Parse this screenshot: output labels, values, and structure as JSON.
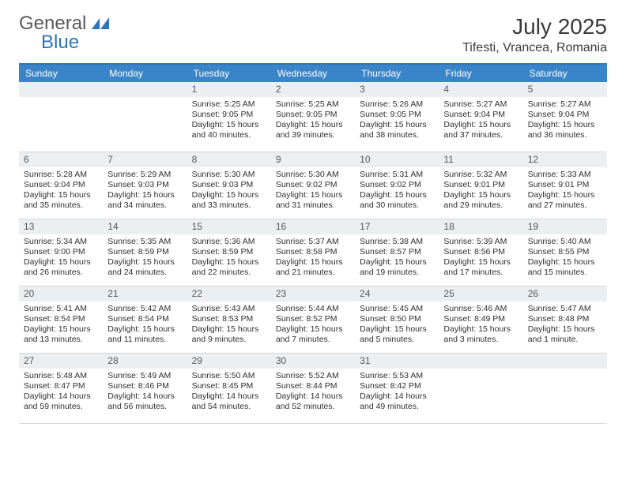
{
  "logo": {
    "word1": "General",
    "word2": "Blue"
  },
  "header": {
    "month_title": "July 2025",
    "location": "Tifesti, Vrancea, Romania"
  },
  "colors": {
    "header_bar": "#3a85c9",
    "header_bar_border": "#2d74b8",
    "daynum_bg": "#eceff1",
    "text": "#2f2f2f",
    "logo_gray": "#5a5a5a",
    "logo_blue": "#2d74b8"
  },
  "days_of_week": [
    "Sunday",
    "Monday",
    "Tuesday",
    "Wednesday",
    "Thursday",
    "Friday",
    "Saturday"
  ],
  "weeks": [
    [
      null,
      null,
      {
        "n": "1",
        "sunrise": "Sunrise: 5:25 AM",
        "sunset": "Sunset: 9:05 PM",
        "daylight": "Daylight: 15 hours and 40 minutes."
      },
      {
        "n": "2",
        "sunrise": "Sunrise: 5:25 AM",
        "sunset": "Sunset: 9:05 PM",
        "daylight": "Daylight: 15 hours and 39 minutes."
      },
      {
        "n": "3",
        "sunrise": "Sunrise: 5:26 AM",
        "sunset": "Sunset: 9:05 PM",
        "daylight": "Daylight: 15 hours and 38 minutes."
      },
      {
        "n": "4",
        "sunrise": "Sunrise: 5:27 AM",
        "sunset": "Sunset: 9:04 PM",
        "daylight": "Daylight: 15 hours and 37 minutes."
      },
      {
        "n": "5",
        "sunrise": "Sunrise: 5:27 AM",
        "sunset": "Sunset: 9:04 PM",
        "daylight": "Daylight: 15 hours and 36 minutes."
      }
    ],
    [
      {
        "n": "6",
        "sunrise": "Sunrise: 5:28 AM",
        "sunset": "Sunset: 9:04 PM",
        "daylight": "Daylight: 15 hours and 35 minutes."
      },
      {
        "n": "7",
        "sunrise": "Sunrise: 5:29 AM",
        "sunset": "Sunset: 9:03 PM",
        "daylight": "Daylight: 15 hours and 34 minutes."
      },
      {
        "n": "8",
        "sunrise": "Sunrise: 5:30 AM",
        "sunset": "Sunset: 9:03 PM",
        "daylight": "Daylight: 15 hours and 33 minutes."
      },
      {
        "n": "9",
        "sunrise": "Sunrise: 5:30 AM",
        "sunset": "Sunset: 9:02 PM",
        "daylight": "Daylight: 15 hours and 31 minutes."
      },
      {
        "n": "10",
        "sunrise": "Sunrise: 5:31 AM",
        "sunset": "Sunset: 9:02 PM",
        "daylight": "Daylight: 15 hours and 30 minutes."
      },
      {
        "n": "11",
        "sunrise": "Sunrise: 5:32 AM",
        "sunset": "Sunset: 9:01 PM",
        "daylight": "Daylight: 15 hours and 29 minutes."
      },
      {
        "n": "12",
        "sunrise": "Sunrise: 5:33 AM",
        "sunset": "Sunset: 9:01 PM",
        "daylight": "Daylight: 15 hours and 27 minutes."
      }
    ],
    [
      {
        "n": "13",
        "sunrise": "Sunrise: 5:34 AM",
        "sunset": "Sunset: 9:00 PM",
        "daylight": "Daylight: 15 hours and 26 minutes."
      },
      {
        "n": "14",
        "sunrise": "Sunrise: 5:35 AM",
        "sunset": "Sunset: 8:59 PM",
        "daylight": "Daylight: 15 hours and 24 minutes."
      },
      {
        "n": "15",
        "sunrise": "Sunrise: 5:36 AM",
        "sunset": "Sunset: 8:59 PM",
        "daylight": "Daylight: 15 hours and 22 minutes."
      },
      {
        "n": "16",
        "sunrise": "Sunrise: 5:37 AM",
        "sunset": "Sunset: 8:58 PM",
        "daylight": "Daylight: 15 hours and 21 minutes."
      },
      {
        "n": "17",
        "sunrise": "Sunrise: 5:38 AM",
        "sunset": "Sunset: 8:57 PM",
        "daylight": "Daylight: 15 hours and 19 minutes."
      },
      {
        "n": "18",
        "sunrise": "Sunrise: 5:39 AM",
        "sunset": "Sunset: 8:56 PM",
        "daylight": "Daylight: 15 hours and 17 minutes."
      },
      {
        "n": "19",
        "sunrise": "Sunrise: 5:40 AM",
        "sunset": "Sunset: 8:55 PM",
        "daylight": "Daylight: 15 hours and 15 minutes."
      }
    ],
    [
      {
        "n": "20",
        "sunrise": "Sunrise: 5:41 AM",
        "sunset": "Sunset: 8:54 PM",
        "daylight": "Daylight: 15 hours and 13 minutes."
      },
      {
        "n": "21",
        "sunrise": "Sunrise: 5:42 AM",
        "sunset": "Sunset: 8:54 PM",
        "daylight": "Daylight: 15 hours and 11 minutes."
      },
      {
        "n": "22",
        "sunrise": "Sunrise: 5:43 AM",
        "sunset": "Sunset: 8:53 PM",
        "daylight": "Daylight: 15 hours and 9 minutes."
      },
      {
        "n": "23",
        "sunrise": "Sunrise: 5:44 AM",
        "sunset": "Sunset: 8:52 PM",
        "daylight": "Daylight: 15 hours and 7 minutes."
      },
      {
        "n": "24",
        "sunrise": "Sunrise: 5:45 AM",
        "sunset": "Sunset: 8:50 PM",
        "daylight": "Daylight: 15 hours and 5 minutes."
      },
      {
        "n": "25",
        "sunrise": "Sunrise: 5:46 AM",
        "sunset": "Sunset: 8:49 PM",
        "daylight": "Daylight: 15 hours and 3 minutes."
      },
      {
        "n": "26",
        "sunrise": "Sunrise: 5:47 AM",
        "sunset": "Sunset: 8:48 PM",
        "daylight": "Daylight: 15 hours and 1 minute."
      }
    ],
    [
      {
        "n": "27",
        "sunrise": "Sunrise: 5:48 AM",
        "sunset": "Sunset: 8:47 PM",
        "daylight": "Daylight: 14 hours and 59 minutes."
      },
      {
        "n": "28",
        "sunrise": "Sunrise: 5:49 AM",
        "sunset": "Sunset: 8:46 PM",
        "daylight": "Daylight: 14 hours and 56 minutes."
      },
      {
        "n": "29",
        "sunrise": "Sunrise: 5:50 AM",
        "sunset": "Sunset: 8:45 PM",
        "daylight": "Daylight: 14 hours and 54 minutes."
      },
      {
        "n": "30",
        "sunrise": "Sunrise: 5:52 AM",
        "sunset": "Sunset: 8:44 PM",
        "daylight": "Daylight: 14 hours and 52 minutes."
      },
      {
        "n": "31",
        "sunrise": "Sunrise: 5:53 AM",
        "sunset": "Sunset: 8:42 PM",
        "daylight": "Daylight: 14 hours and 49 minutes."
      },
      null,
      null
    ]
  ]
}
